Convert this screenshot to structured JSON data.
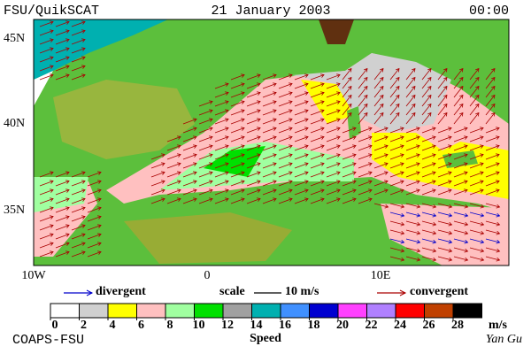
{
  "header": {
    "left": "FSU/QuikSCAT",
    "center": "21 January 2003",
    "right": "00:00"
  },
  "map": {
    "lat_labels": [
      "45N",
      "40N",
      "35N"
    ],
    "lon_labels": [
      "10W",
      "0",
      "10E"
    ]
  },
  "legend": {
    "divergent": "divergent",
    "scale": "scale",
    "scale_value": "10 m/s",
    "convergent": "convergent",
    "divergent_color": "#0000cc",
    "convergent_color": "#aa0000"
  },
  "colorbar": {
    "ticks": [
      0,
      2,
      4,
      6,
      8,
      10,
      12,
      14,
      16,
      18,
      20,
      22,
      24,
      26,
      28
    ],
    "colors": [
      "#ffffff",
      "#d0d0d0",
      "#ffff00",
      "#ffc0c0",
      "#a0ffa0",
      "#00e000",
      "#a0a0a0",
      "#00b0b0",
      "#4090ff",
      "#0000d0",
      "#ff40ff",
      "#b080ff",
      "#ff0000",
      "#c04000",
      "#000000"
    ],
    "unit": "m/s",
    "label": "Speed"
  },
  "footer": {
    "left": "COAPS-FSU",
    "right": "Yan Gu"
  }
}
